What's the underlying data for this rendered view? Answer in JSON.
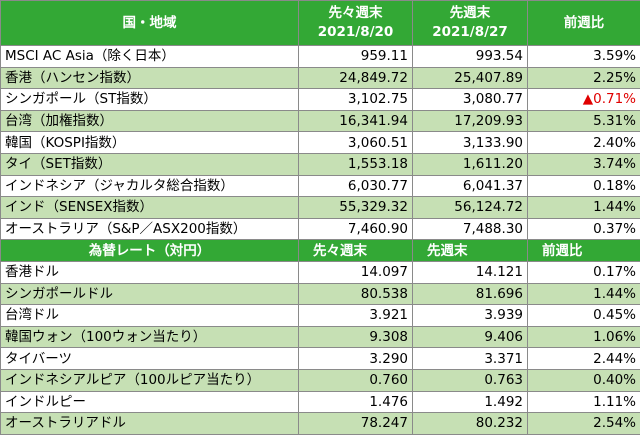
{
  "table": {
    "header": [
      "国・地域",
      [
        "先々週末",
        "2021/8/20"
      ],
      [
        "先週末",
        "2021/8/27"
      ],
      "前週比"
    ],
    "rows": [
      [
        "MSCI AC Asia（除く日本）",
        "959.11",
        "993.54",
        "3.59%"
      ],
      [
        "香港（ハンセン指数）",
        "24,849.72",
        "25,407.89",
        "2.25%"
      ],
      [
        "シンガポール（ST指数）",
        "3,102.75",
        "3,080.77",
        "▲0.71%"
      ],
      [
        "台湾（加権指数）",
        "16,341.94",
        "17,209.93",
        "5.31%"
      ],
      [
        "韓国（KOSPI指数）",
        "3,060.51",
        "3,133.90",
        "2.40%"
      ],
      [
        "タイ（SET指数）",
        "1,553.18",
        "1,611.20",
        "3.74%"
      ],
      [
        "インドネシア（ジャカルタ総合指数）",
        "6,030.77",
        "6,041.37",
        "0.18%"
      ],
      [
        "インド（SENSEX指数）",
        "55,329.32",
        "56,124.72",
        "1.44%"
      ],
      [
        "オーストラリア（S&P／ASX200指数）",
        "7,460.90",
        "7,488.30",
        "0.37%"
      ]
    ],
    "fx_header": [
      "為替レート（対円）",
      "先々週末",
      "先週末",
      "前週比"
    ],
    "fx_rows": [
      [
        "香港ドル",
        "14.097",
        "14.121",
        "0.17%"
      ],
      [
        "シンガポールドル",
        "80.538",
        "81.696",
        "1.44%"
      ],
      [
        "台湾ドル",
        "3.921",
        "3.939",
        "0.45%"
      ],
      [
        "韓国ウォン（100ウォン当たり）",
        "9.308",
        "9.406",
        "1.06%"
      ],
      [
        "タイバーツ",
        "3.290",
        "3.371",
        "2.44%"
      ],
      [
        "インドネシアルピア（100ルピア当たり）",
        "0.760",
        "0.763",
        "0.40%"
      ],
      [
        "インドルピー",
        "1.476",
        "1.492",
        "1.11%"
      ],
      [
        "オーストラリアドル",
        "78.247",
        "80.232",
        "2.54%"
      ]
    ]
  }
}
